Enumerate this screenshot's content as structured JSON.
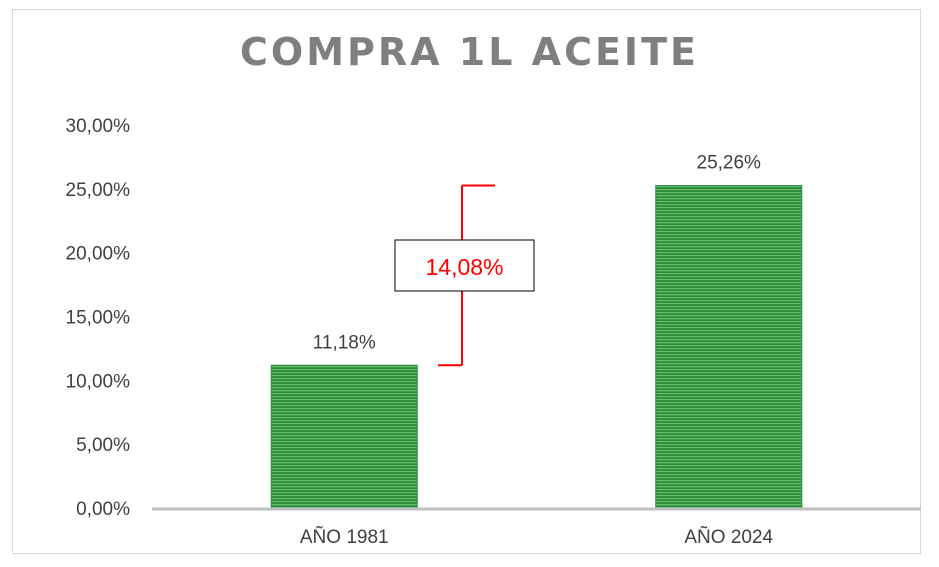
{
  "chart_data": {
    "type": "bar",
    "title": "COMPRA 1L ACEITE",
    "categories": [
      "AÑO 1981",
      "AÑO 2024"
    ],
    "values": [
      11.18,
      25.26
    ],
    "data_labels": [
      "11,18%",
      "25,26%"
    ],
    "y_ticks": [
      "0,00%",
      "5,00%",
      "10,00%",
      "15,00%",
      "20,00%",
      "25,00%",
      "30,00%"
    ],
    "ylim": [
      0,
      30
    ],
    "grid": false,
    "legend": "none",
    "annotation": {
      "text": "14,08%",
      "from": 11.18,
      "to": 25.26
    },
    "colors": {
      "bar": "#2e8b3a",
      "bar_stripe": "#5fbf6a",
      "axis": "#bfbfbf",
      "annotation": "#ff0000"
    }
  }
}
